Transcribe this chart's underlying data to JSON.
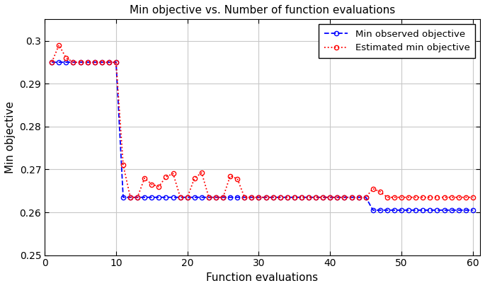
{
  "title": "Min objective vs. Number of function evaluations",
  "xlabel": "Function evaluations",
  "ylabel": "Min objective",
  "xlim": [
    0,
    61
  ],
  "ylim": [
    0.25,
    0.305
  ],
  "yticks": [
    0.25,
    0.26,
    0.27,
    0.28,
    0.29,
    0.3
  ],
  "xticks": [
    0,
    10,
    20,
    30,
    40,
    50,
    60
  ],
  "blue_x": [
    1,
    2,
    3,
    4,
    5,
    6,
    7,
    8,
    9,
    10,
    11,
    12,
    13,
    14,
    15,
    16,
    17,
    18,
    19,
    20,
    21,
    22,
    23,
    24,
    25,
    26,
    27,
    28,
    29,
    30,
    31,
    32,
    33,
    34,
    35,
    36,
    37,
    38,
    39,
    40,
    41,
    42,
    43,
    44,
    45,
    46,
    47,
    48,
    49,
    50,
    51,
    52,
    53,
    54,
    55,
    56,
    57,
    58,
    59,
    60
  ],
  "blue_y": [
    0.295,
    0.295,
    0.295,
    0.295,
    0.295,
    0.295,
    0.295,
    0.295,
    0.295,
    0.295,
    0.2635,
    0.2635,
    0.2635,
    0.2635,
    0.2635,
    0.2635,
    0.2635,
    0.2635,
    0.2635,
    0.2635,
    0.2635,
    0.2635,
    0.2635,
    0.2635,
    0.2635,
    0.2635,
    0.2635,
    0.2635,
    0.2635,
    0.2635,
    0.2635,
    0.2635,
    0.2635,
    0.2635,
    0.2635,
    0.2635,
    0.2635,
    0.2635,
    0.2635,
    0.2635,
    0.2635,
    0.2635,
    0.2635,
    0.2635,
    0.2635,
    0.2605,
    0.2605,
    0.2605,
    0.2605,
    0.2605,
    0.2605,
    0.2605,
    0.2605,
    0.2605,
    0.2605,
    0.2605,
    0.2605,
    0.2605,
    0.2605,
    0.2605
  ],
  "red_x": [
    1,
    2,
    3,
    4,
    5,
    6,
    7,
    8,
    9,
    10,
    11,
    12,
    13,
    14,
    15,
    16,
    17,
    18,
    19,
    20,
    21,
    22,
    23,
    24,
    25,
    26,
    27,
    28,
    29,
    30,
    31,
    32,
    33,
    34,
    35,
    36,
    37,
    38,
    39,
    40,
    41,
    42,
    43,
    44,
    45,
    46,
    47,
    48,
    49,
    50,
    51,
    52,
    53,
    54,
    55,
    56,
    57,
    58,
    59,
    60
  ],
  "red_y": [
    0.295,
    0.299,
    0.296,
    0.295,
    0.295,
    0.295,
    0.295,
    0.295,
    0.295,
    0.295,
    0.271,
    0.2635,
    0.2635,
    0.268,
    0.2665,
    0.266,
    0.2683,
    0.269,
    0.2635,
    0.2635,
    0.268,
    0.2692,
    0.2635,
    0.2635,
    0.2635,
    0.2685,
    0.2678,
    0.2635,
    0.2635,
    0.2635,
    0.2635,
    0.2635,
    0.2635,
    0.2635,
    0.2635,
    0.2635,
    0.2635,
    0.2635,
    0.2635,
    0.2635,
    0.2635,
    0.2635,
    0.2635,
    0.2635,
    0.2635,
    0.2655,
    0.2648,
    0.2635,
    0.2635,
    0.2635,
    0.2635,
    0.2635,
    0.2635,
    0.2635,
    0.2635,
    0.2635,
    0.2635,
    0.2635,
    0.2635,
    0.2635
  ],
  "blue_color": "#0000FF",
  "red_color": "#FF0000",
  "bg_color": "#FFFFFF",
  "grid_color": "#C8C8C8",
  "legend_label_blue": "Min observed objective",
  "legend_label_red": "Estimated min objective",
  "figwidth": 6.85,
  "figheight": 4.07,
  "dpi": 100
}
